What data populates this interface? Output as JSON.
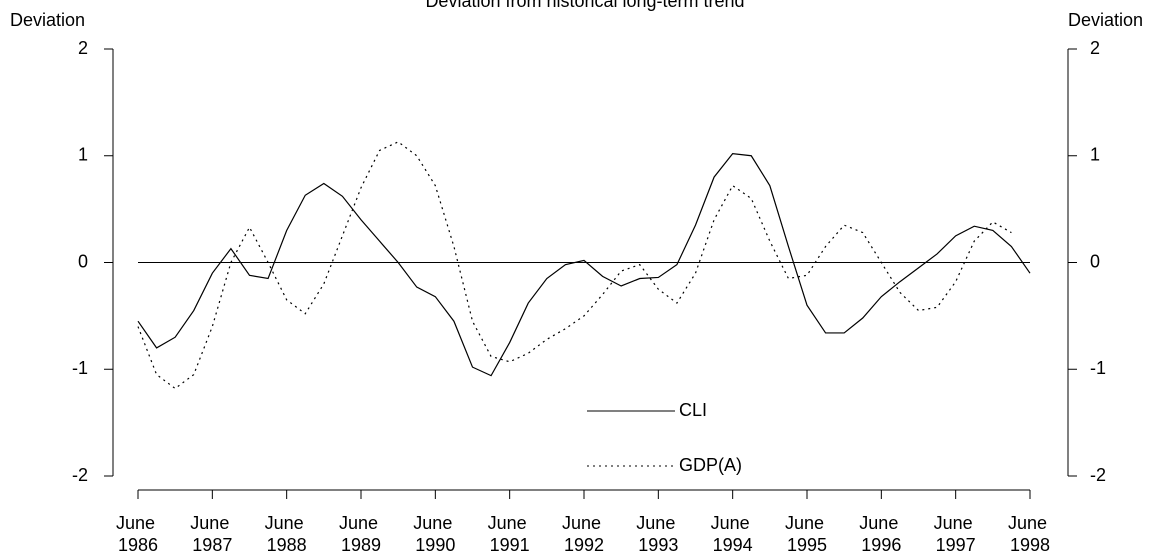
{
  "chart_data": {
    "type": "line",
    "title": "Deviation from historical long-term trend",
    "ylabel": "Deviation",
    "y2label": "Deviation",
    "categories": [
      "June 1986",
      null,
      null,
      null,
      "June 1987",
      null,
      null,
      null,
      "June 1988",
      null,
      null,
      null,
      "June 1989",
      null,
      null,
      null,
      "June 1990",
      null,
      null,
      null,
      "June 1991",
      null,
      null,
      null,
      "June 1992",
      null,
      null,
      null,
      "June 1993",
      null,
      null,
      null,
      "June 1994",
      null,
      null,
      null,
      "June 1995",
      null,
      null,
      null,
      "June 1996",
      null,
      null,
      null,
      "June 1997",
      null,
      null,
      null,
      "June 1998"
    ],
    "series": [
      {
        "name": "CLI",
        "color": "#000000",
        "line_style": "solid",
        "values": [
          -0.55,
          -0.8,
          -0.7,
          -0.45,
          -0.1,
          0.13,
          -0.12,
          -0.15,
          0.3,
          0.63,
          0.74,
          0.62,
          0.4,
          0.2,
          0.0,
          -0.23,
          -0.32,
          -0.55,
          -0.98,
          -1.06,
          -0.75,
          -0.38,
          -0.15,
          -0.02,
          0.02,
          -0.13,
          -0.22,
          -0.15,
          -0.14,
          -0.02,
          0.35,
          0.8,
          1.02,
          1.0,
          0.72,
          0.15,
          -0.4,
          -0.66,
          -0.66,
          -0.52,
          -0.32,
          -0.18,
          -0.05,
          0.08,
          0.25,
          0.34,
          0.3,
          0.15,
          -0.1
        ]
      },
      {
        "name": "GDP(A)",
        "color": "#000000",
        "line_style": "dotted",
        "values": [
          -0.6,
          -1.05,
          -1.18,
          -1.05,
          -0.6,
          0.0,
          0.33,
          0.0,
          -0.35,
          -0.48,
          -0.2,
          0.25,
          0.7,
          1.05,
          1.13,
          1.0,
          0.72,
          0.15,
          -0.55,
          -0.88,
          -0.93,
          -0.85,
          -0.72,
          -0.62,
          -0.5,
          -0.3,
          -0.08,
          -0.02,
          -0.25,
          -0.38,
          -0.1,
          0.4,
          0.72,
          0.6,
          0.2,
          -0.15,
          -0.12,
          0.15,
          0.35,
          0.28,
          0.0,
          -0.28,
          -0.45,
          -0.42,
          -0.18,
          0.2,
          0.38,
          0.28,
          null
        ]
      }
    ],
    "ylim": [
      -2,
      2
    ],
    "yticks": [
      -2,
      -1,
      0,
      1,
      2
    ],
    "y2lim": [
      -2,
      2
    ],
    "y2ticks": [
      -2,
      -1,
      0,
      1,
      2
    ],
    "zero_line": true
  }
}
